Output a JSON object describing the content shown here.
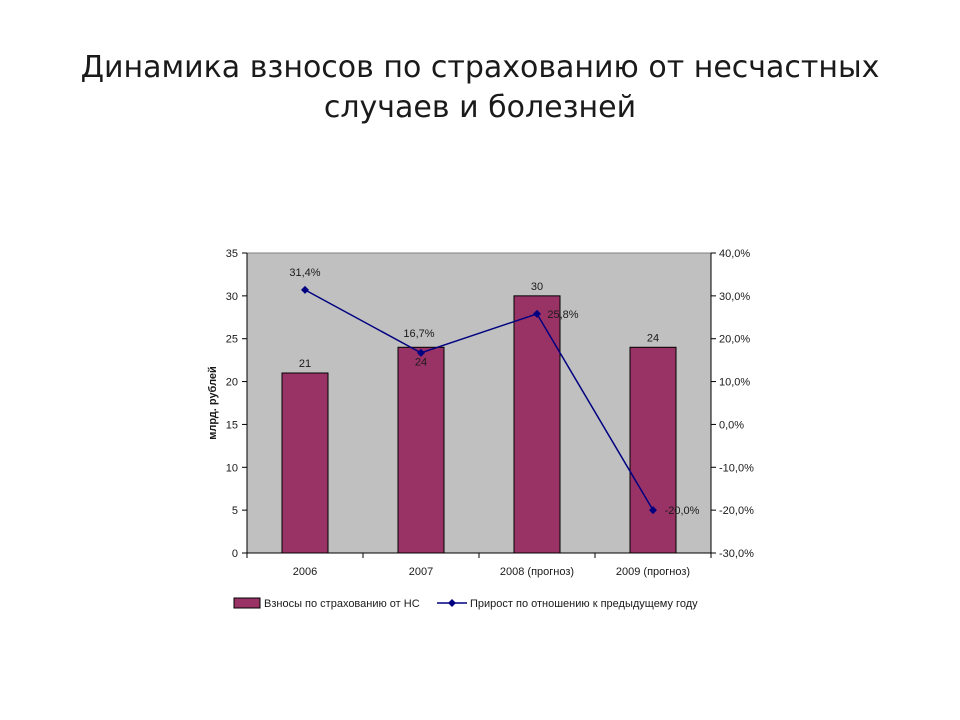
{
  "slide": {
    "title_line1": "Динамика взносов по страхованию от несчастных",
    "title_line2": "случаев и болезней"
  },
  "chart_data": {
    "type": "bar",
    "categories": [
      "2006",
      "2007",
      "2008 (прогноз)",
      "2009 (прогноз)"
    ],
    "ylabel": "млрд. рублей",
    "ylim": [
      0,
      35
    ],
    "yticks": [
      0,
      5,
      10,
      15,
      20,
      25,
      30,
      35
    ],
    "y2lim": [
      -30,
      40
    ],
    "y2ticks": [
      "-30,0%",
      "-20,0%",
      "-10,0%",
      "0,0%",
      "10,0%",
      "20,0%",
      "30,0%",
      "40,0%"
    ],
    "grid": false,
    "legend_position": "bottom",
    "series": [
      {
        "name": "Взносы по страхованию от НС",
        "type": "bar",
        "axis": "left",
        "values": [
          21,
          24,
          30,
          24
        ],
        "labels": [
          "21",
          "24",
          "30",
          "24"
        ],
        "color": "#993366"
      },
      {
        "name": "Прирост по отношению к предыдущему году",
        "type": "line",
        "axis": "right",
        "values": [
          31.4,
          16.7,
          25.8,
          -20.0
        ],
        "labels": [
          "31,4%",
          "16,7%",
          "25,8%",
          "-20,0%"
        ],
        "color": "#000080"
      }
    ],
    "plot_background": "#c0c0c0"
  }
}
